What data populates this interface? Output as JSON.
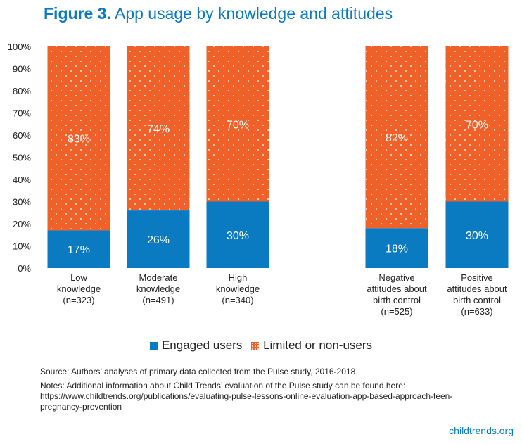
{
  "title_prefix": "Figure 3.",
  "title_main": "App usage by knowledge and attitudes",
  "chart_data": {
    "type": "bar",
    "stacked": true,
    "categories": [
      [
        "Low",
        "knowledge",
        "(n=323)"
      ],
      [
        "Moderate",
        "knowledge",
        "(n=491)"
      ],
      [
        "High",
        "knowledge",
        "(n=340)"
      ],
      [
        "Negative",
        "attitudes about",
        "birth control",
        "(n=525)"
      ],
      [
        "Positive",
        "attitudes about",
        "birth control",
        "(n=633)"
      ]
    ],
    "series": [
      {
        "name": "Engaged users",
        "values": [
          17,
          26,
          30,
          18,
          30
        ],
        "labels": [
          "17%",
          "26%",
          "30%",
          "18%",
          "30%"
        ],
        "color": "#0a7bc1"
      },
      {
        "name": "Limited or non-users",
        "values": [
          83,
          74,
          70,
          82,
          70
        ],
        "labels": [
          "83%",
          "74%",
          "70%",
          "82%",
          "70%"
        ],
        "color": "#f0612a"
      }
    ],
    "y_ticks": [
      "0%",
      "10%",
      "20%",
      "30%",
      "40%",
      "50%",
      "60%",
      "70%",
      "80%",
      "90%",
      "100%"
    ],
    "ylim": [
      0,
      100
    ],
    "grid": false,
    "legend_position": "bottom"
  },
  "legend": {
    "engaged": "Engaged users",
    "limited": "Limited or non-users"
  },
  "source": "Source: Authors’ analyses of primary data collected from the Pulse study, 2016-2018",
  "notes": "Notes: Additional information about Child Trends’ evaluation of the Pulse study can be found here: https://www.childtrends.org/publications/evaluating-pulse-lessons-online-evaluation-app-based-approach-teen-pregnancy-prevention",
  "footer": "childtrends.org",
  "colors": {
    "brand": "#0a7bc1",
    "accent": "#f0612a",
    "text": "#222222"
  }
}
